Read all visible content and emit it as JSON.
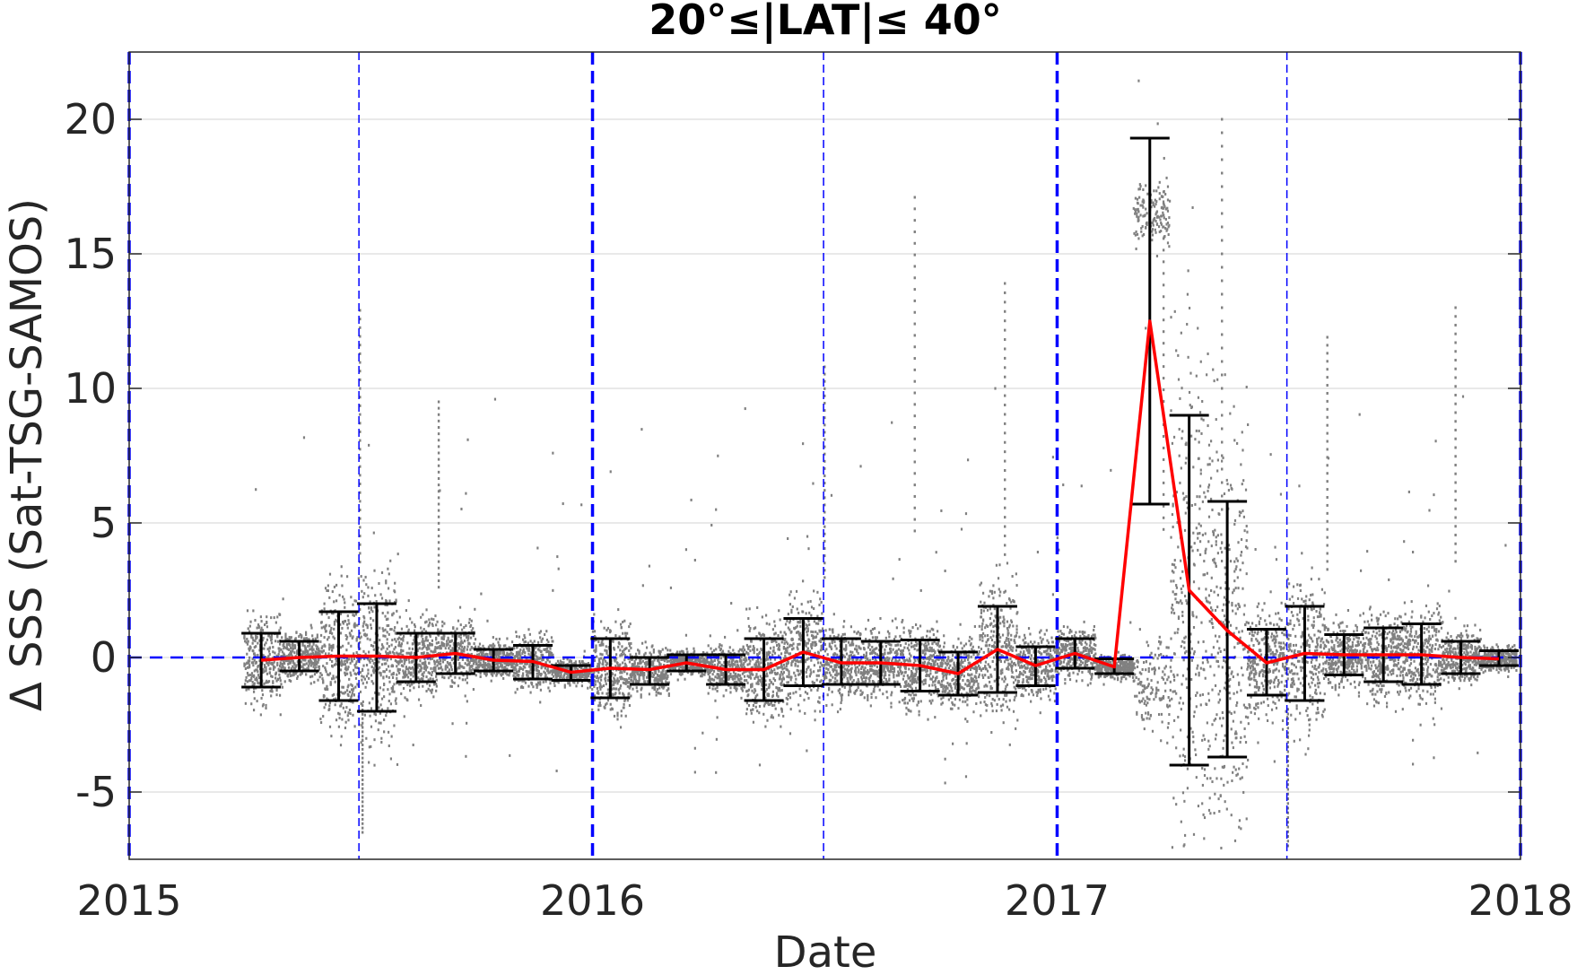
{
  "chart_data": {
    "type": "scatter",
    "title": "20°≤|LAT|≤ 40°",
    "xlabel": "Date",
    "ylabel": "Δ SSS (Sat-TSG-SAMOS)",
    "xlim": [
      "2015-01-01",
      "2018-01-01"
    ],
    "ylim": [
      -7.5,
      22.5
    ],
    "xticks": [
      "2015",
      "2016",
      "2017",
      "2018"
    ],
    "yticks": [
      -5,
      0,
      5,
      10,
      15,
      20
    ],
    "grid": "horizontal",
    "colors": {
      "scatter": "#808080",
      "mean_line": "#ff0000",
      "error_bars": "#000000",
      "reference_lines": "#0000ff"
    },
    "reference_lines": {
      "year_boundaries": [
        "2015-01-01",
        "2016-01-01",
        "2017-01-01",
        "2018-01-01"
      ],
      "mid_years": [
        "2015-07-01",
        "2016-07-01",
        "2017-07-01"
      ],
      "zero_line": 0
    },
    "series": [
      {
        "kind": "monthly_mean_with_error_bars",
        "points": [
          {
            "date": "2015-04-15",
            "mean": -0.1,
            "low": -1.1,
            "high": 0.9
          },
          {
            "date": "2015-05-15",
            "mean": 0.0,
            "low": -0.5,
            "high": 0.6
          },
          {
            "date": "2015-06-15",
            "mean": 0.05,
            "low": -1.6,
            "high": 1.7
          },
          {
            "date": "2015-07-15",
            "mean": 0.05,
            "low": -2.0,
            "high": 2.0
          },
          {
            "date": "2015-08-15",
            "mean": 0.0,
            "low": -0.9,
            "high": 0.9
          },
          {
            "date": "2015-09-15",
            "mean": 0.15,
            "low": -0.6,
            "high": 0.9
          },
          {
            "date": "2015-10-15",
            "mean": -0.1,
            "low": -0.5,
            "high": 0.3
          },
          {
            "date": "2015-11-15",
            "mean": -0.15,
            "low": -0.8,
            "high": 0.45
          },
          {
            "date": "2015-12-15",
            "mean": -0.55,
            "low": -0.85,
            "high": -0.3
          },
          {
            "date": "2016-01-15",
            "mean": -0.4,
            "low": -1.5,
            "high": 0.7
          },
          {
            "date": "2016-02-15",
            "mean": -0.45,
            "low": -1.0,
            "high": 0.0
          },
          {
            "date": "2016-03-15",
            "mean": -0.2,
            "low": -0.5,
            "high": 0.1
          },
          {
            "date": "2016-04-15",
            "mean": -0.45,
            "low": -1.0,
            "high": 0.1
          },
          {
            "date": "2016-05-15",
            "mean": -0.45,
            "low": -1.6,
            "high": 0.7
          },
          {
            "date": "2016-06-15",
            "mean": 0.2,
            "low": -1.05,
            "high": 1.45
          },
          {
            "date": "2016-07-15",
            "mean": -0.2,
            "low": -1.0,
            "high": 0.7
          },
          {
            "date": "2016-08-15",
            "mean": -0.2,
            "low": -1.0,
            "high": 0.6
          },
          {
            "date": "2016-09-15",
            "mean": -0.3,
            "low": -1.25,
            "high": 0.65
          },
          {
            "date": "2016-10-15",
            "mean": -0.6,
            "low": -1.4,
            "high": 0.2
          },
          {
            "date": "2016-11-15",
            "mean": 0.3,
            "low": -1.3,
            "high": 1.9
          },
          {
            "date": "2016-12-15",
            "mean": -0.3,
            "low": -1.05,
            "high": 0.4
          },
          {
            "date": "2017-01-15",
            "mean": 0.15,
            "low": -0.4,
            "high": 0.7
          },
          {
            "date": "2017-02-15",
            "mean": -0.35,
            "low": -0.6,
            "high": -0.05
          },
          {
            "date": "2017-03-15",
            "mean": 12.5,
            "low": 5.7,
            "high": 19.3
          },
          {
            "date": "2017-04-15",
            "mean": 2.5,
            "low": -4.0,
            "high": 9.0
          },
          {
            "date": "2017-05-15",
            "mean": 1.0,
            "low": -3.7,
            "high": 5.8
          },
          {
            "date": "2017-06-15",
            "mean": -0.2,
            "low": -1.4,
            "high": 1.05
          },
          {
            "date": "2017-07-15",
            "mean": 0.15,
            "low": -1.6,
            "high": 1.9
          },
          {
            "date": "2017-08-15",
            "mean": 0.1,
            "low": -0.65,
            "high": 0.85
          },
          {
            "date": "2017-09-15",
            "mean": 0.1,
            "low": -0.9,
            "high": 1.1
          },
          {
            "date": "2017-10-15",
            "mean": 0.1,
            "low": -1.0,
            "high": 1.25
          },
          {
            "date": "2017-11-15",
            "mean": 0.0,
            "low": -0.6,
            "high": 0.6
          },
          {
            "date": "2017-12-15",
            "mean": -0.05,
            "low": -0.3,
            "high": 0.25
          }
        ]
      },
      {
        "kind": "individual_differences",
        "extreme_points": [
          {
            "date": "2015-07-01",
            "value": 12.9
          },
          {
            "date": "2015-07-03",
            "value": -6.5
          },
          {
            "date": "2015-09-01",
            "value": 9.5
          },
          {
            "date": "2016-07-01",
            "value": 10.8
          },
          {
            "date": "2016-09-10",
            "value": 17.1
          },
          {
            "date": "2016-11-20",
            "value": 13.9
          },
          {
            "date": "2017-03-25",
            "value": 17.3
          },
          {
            "date": "2017-05-10",
            "value": 20.0
          },
          {
            "date": "2017-07-01",
            "value": -7.0
          },
          {
            "date": "2017-08-01",
            "value": 11.9
          },
          {
            "date": "2017-11-10",
            "value": 13.0
          }
        ]
      }
    ]
  }
}
